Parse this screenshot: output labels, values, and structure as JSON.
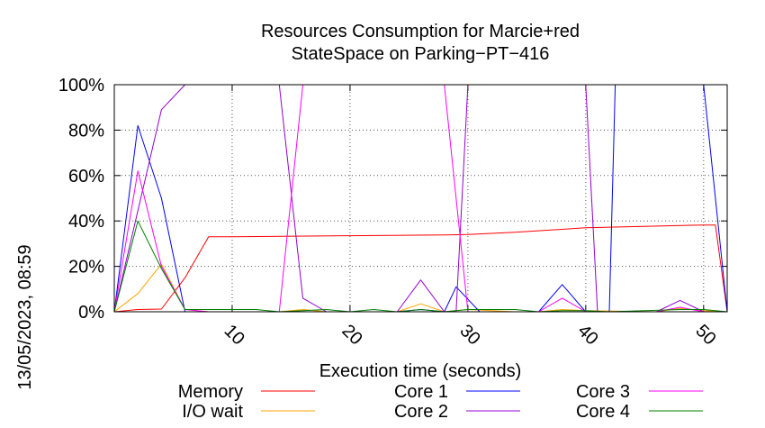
{
  "chart_data": {
    "type": "line",
    "title": "Resources Consumption for Marcie+red",
    "subtitle": "StateSpace on Parking−PT−416",
    "xlabel": "Execution time (seconds)",
    "ylabel": "",
    "side_label": "13/05/2023, 08:59",
    "xlim": [
      0,
      52
    ],
    "ylim": [
      0,
      100
    ],
    "x_ticks": [
      10,
      20,
      30,
      40,
      50
    ],
    "y_ticks": [
      0,
      20,
      40,
      60,
      80,
      100
    ],
    "y_tick_labels": [
      "0%",
      "20%",
      "40%",
      "60%",
      "80%",
      "100%"
    ],
    "grid": true,
    "legend_position": "bottom",
    "series": [
      {
        "name": "Memory",
        "color": "#ff0000",
        "points": [
          [
            0,
            0
          ],
          [
            2,
            1
          ],
          [
            4,
            1.2
          ],
          [
            6,
            15
          ],
          [
            8,
            33
          ],
          [
            10,
            33
          ],
          [
            20,
            33.5
          ],
          [
            28,
            33.8
          ],
          [
            30,
            34
          ],
          [
            34,
            35
          ],
          [
            40,
            37
          ],
          [
            50,
            38.2
          ],
          [
            51,
            38.2
          ],
          [
            52,
            0
          ]
        ]
      },
      {
        "name": "I/O wait",
        "color": "#ffa500",
        "points": [
          [
            0,
            0
          ],
          [
            2,
            8
          ],
          [
            4,
            21
          ],
          [
            6,
            1
          ],
          [
            8,
            0
          ],
          [
            14,
            0
          ],
          [
            16,
            1
          ],
          [
            18,
            0
          ],
          [
            24,
            0
          ],
          [
            26,
            3.5
          ],
          [
            28,
            0
          ],
          [
            30,
            1
          ],
          [
            34,
            0
          ],
          [
            36,
            0
          ],
          [
            38,
            1
          ],
          [
            40,
            0.5
          ],
          [
            46,
            0
          ],
          [
            48,
            1.5
          ],
          [
            50,
            0.5
          ],
          [
            52,
            0
          ]
        ]
      },
      {
        "name": "Core 1",
        "color": "#0000ff",
        "points": [
          [
            0,
            0
          ],
          [
            2,
            82
          ],
          [
            4,
            50
          ],
          [
            6,
            0
          ],
          [
            12,
            0
          ],
          [
            24,
            0
          ],
          [
            26,
            1
          ],
          [
            28,
            0
          ],
          [
            29,
            11
          ],
          [
            31,
            0
          ],
          [
            36,
            0
          ],
          [
            38,
            12
          ],
          [
            40,
            0
          ],
          [
            42,
            0
          ],
          [
            42.5,
            100
          ],
          [
            50,
            100
          ],
          [
            52,
            0
          ]
        ]
      },
      {
        "name": "Core 2",
        "color": "#9400d3",
        "points": [
          [
            0,
            0
          ],
          [
            4,
            89
          ],
          [
            6,
            100
          ],
          [
            14,
            100
          ],
          [
            16,
            6
          ],
          [
            18,
            0
          ],
          [
            24,
            0
          ],
          [
            26,
            14
          ],
          [
            28,
            0
          ],
          [
            29,
            0
          ],
          [
            30,
            100
          ],
          [
            40,
            100
          ],
          [
            41,
            0
          ],
          [
            44,
            0
          ],
          [
            46,
            0
          ],
          [
            48,
            5
          ],
          [
            50,
            0
          ],
          [
            52,
            0
          ]
        ]
      },
      {
        "name": "Core 3",
        "color": "#ff00ff",
        "points": [
          [
            0,
            0
          ],
          [
            2,
            62
          ],
          [
            4,
            20
          ],
          [
            6,
            1
          ],
          [
            8,
            0
          ],
          [
            14,
            0
          ],
          [
            16,
            100
          ],
          [
            28,
            100
          ],
          [
            30,
            0
          ],
          [
            34,
            0
          ],
          [
            36,
            0
          ],
          [
            38,
            6
          ],
          [
            40,
            0
          ],
          [
            44,
            0
          ],
          [
            46,
            0
          ],
          [
            48,
            2
          ],
          [
            50,
            0
          ],
          [
            52,
            0
          ]
        ]
      },
      {
        "name": "Core 4",
        "color": "#008000",
        "points": [
          [
            0,
            0
          ],
          [
            2,
            40
          ],
          [
            4,
            19
          ],
          [
            6,
            1
          ],
          [
            8,
            1
          ],
          [
            12,
            1
          ],
          [
            14,
            0
          ],
          [
            18,
            1
          ],
          [
            20,
            0
          ],
          [
            22,
            1
          ],
          [
            24,
            0
          ],
          [
            26,
            1
          ],
          [
            28,
            0
          ],
          [
            30,
            1
          ],
          [
            34,
            1
          ],
          [
            36,
            0
          ],
          [
            38,
            0.5
          ],
          [
            40,
            0.5
          ],
          [
            42,
            0
          ],
          [
            48,
            1
          ],
          [
            50,
            1
          ],
          [
            52,
            0
          ]
        ]
      }
    ]
  }
}
